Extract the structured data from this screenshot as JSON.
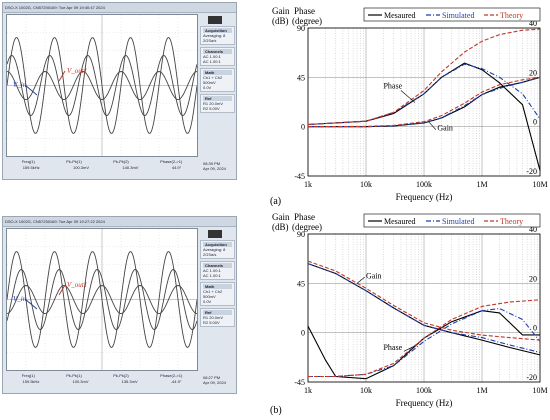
{
  "scope_a": {
    "header": "DSO-X 1002G, CN57250169: Tue Apr 09 19:40:47 2024",
    "v_in_label": "V_in",
    "v_out_label": "V_out1",
    "acquisition": [
      "Acquisition",
      "Averaging: 8",
      "2GSa/s"
    ],
    "channels": [
      "Channels",
      "AC 1.00:1",
      "AC 1.00:1"
    ],
    "math": [
      "Math",
      "Ch1 + Ch2",
      "500mV",
      "0.0V"
    ],
    "ref": [
      "Ref",
      "R1 20.0mV",
      "R2 5.00V"
    ],
    "measure_labels": [
      "Freq(1)",
      "Pk-Pk(1)",
      "Pk-Pk(2)",
      "Phase(2->1)"
    ],
    "measure_values": [
      "159.5kHz",
      "100.3mV",
      "140.3mV",
      "44.9°"
    ],
    "clock": [
      "08:39 PM",
      "Apr 09, 2024"
    ]
  },
  "scope_b": {
    "header": "DSO-X 1002G, CN57250169: Tue Apr 09 19:27:22 2024",
    "v_in_label": "V_in",
    "v_out_label": "V_out1",
    "acquisition": [
      "Acquisition",
      "Averaging: 8",
      "2GSa/s"
    ],
    "channels": [
      "Channels",
      "AC 1.00:1",
      "AC 1.00:1"
    ],
    "math": [
      "Math",
      "Ch1 + Ch2",
      "500mV",
      "0.0V"
    ],
    "ref": [
      "Ref",
      "R1 20.0mV",
      "R2 5.00V"
    ],
    "measure_labels": [
      "Freq(1)",
      "Pk-Pk(1)",
      "Pk-Pk(2)",
      "Phase(2->1)"
    ],
    "measure_values": [
      "159.5kHz",
      "100.3mV",
      "135.3mV",
      "-44.9°"
    ],
    "clock": [
      "08:27 PM",
      "Apr 09, 2024"
    ]
  },
  "captions": {
    "a": "(a)",
    "b": "(b)"
  },
  "chart_data": [
    {
      "type": "line",
      "xlabel": "Frequency (Hz)",
      "gain_axis_title": "Gain (dB)",
      "phase_axis_title": "Phase (degree)",
      "x_scale": "log",
      "x_ticks": [
        "1k",
        "10k",
        "100k",
        "1M",
        "10M"
      ],
      "gain_ticks": [
        "40",
        "20",
        "0",
        "-20"
      ],
      "phase_ticks": [
        "90",
        "45",
        "0",
        "-45"
      ],
      "gain_ylim": [
        -20,
        40
      ],
      "phase_ylim": [
        -45,
        90
      ],
      "legend_position": "top-right",
      "annotations": [
        "Phase",
        "Gain"
      ],
      "series": [
        {
          "name": "Mesaured",
          "color": "#000000",
          "dash": "solid",
          "gain": [
            [
              1000,
              0
            ],
            [
              10000,
              0
            ],
            [
              30000,
              0.3
            ],
            [
              100000,
              1.5
            ],
            [
              200000,
              3.5
            ],
            [
              500000,
              8
            ],
            [
              1000000,
              13
            ],
            [
              2000000,
              16
            ],
            [
              5000000,
              18
            ],
            [
              10000000,
              20
            ]
          ],
          "phase": [
            [
              1000,
              2
            ],
            [
              10000,
              5
            ],
            [
              30000,
              12
            ],
            [
              100000,
              30
            ],
            [
              200000,
              45
            ],
            [
              500000,
              58
            ],
            [
              1000000,
              52
            ],
            [
              2000000,
              40
            ],
            [
              5000000,
              20
            ],
            [
              10000000,
              -40
            ]
          ]
        },
        {
          "name": "Simulated",
          "color": "#1f3fb0",
          "dash": "dash-dot",
          "gain": [
            [
              1000,
              0
            ],
            [
              10000,
              0
            ],
            [
              30000,
              0.3
            ],
            [
              100000,
              1.6
            ],
            [
              200000,
              3.6
            ],
            [
              500000,
              8.5
            ],
            [
              1000000,
              13
            ],
            [
              2000000,
              15.5
            ],
            [
              5000000,
              18
            ],
            [
              10000000,
              20
            ]
          ],
          "phase": [
            [
              1000,
              2
            ],
            [
              10000,
              5
            ],
            [
              30000,
              13
            ],
            [
              100000,
              30
            ],
            [
              200000,
              45
            ],
            [
              500000,
              57
            ],
            [
              1000000,
              53
            ],
            [
              2000000,
              45
            ],
            [
              5000000,
              30
            ],
            [
              10000000,
              7
            ]
          ]
        },
        {
          "name": "Theory",
          "color": "#c0392b",
          "dash": "dash",
          "gain": [
            [
              1000,
              0
            ],
            [
              10000,
              0.1
            ],
            [
              30000,
              0.5
            ],
            [
              100000,
              2
            ],
            [
              200000,
              4.5
            ],
            [
              500000,
              9.5
            ],
            [
              1000000,
              14
            ],
            [
              2000000,
              17
            ],
            [
              5000000,
              19
            ],
            [
              10000000,
              20
            ]
          ],
          "phase": [
            [
              1000,
              2
            ],
            [
              10000,
              5
            ],
            [
              30000,
              13
            ],
            [
              100000,
              33
            ],
            [
              200000,
              50
            ],
            [
              500000,
              68
            ],
            [
              1000000,
              78
            ],
            [
              2000000,
              84
            ],
            [
              5000000,
              88
            ],
            [
              10000000,
              89
            ]
          ]
        }
      ]
    },
    {
      "type": "line",
      "xlabel": "Frequency (Hz)",
      "gain_axis_title": "Gain (dB)",
      "phase_axis_title": "Phase (degree)",
      "x_scale": "log",
      "x_ticks": [
        "1k",
        "10k",
        "100k",
        "1M",
        "10M"
      ],
      "gain_ticks": [
        "40",
        "20",
        "0",
        "-20"
      ],
      "phase_ticks": [
        "90",
        "45",
        "0",
        "-45"
      ],
      "gain_ylim": [
        -20,
        40
      ],
      "phase_ylim": [
        -45,
        90
      ],
      "legend_position": "top-right",
      "annotations": [
        "Gain",
        "Phase"
      ],
      "series": [
        {
          "name": "Mesaured",
          "color": "#000000",
          "dash": "solid",
          "gain": [
            [
              1000,
              28
            ],
            [
              3000,
              24
            ],
            [
              10000,
              17
            ],
            [
              30000,
              10
            ],
            [
              100000,
              3
            ],
            [
              300000,
              0
            ],
            [
              1000000,
              -3
            ],
            [
              3000000,
              -6
            ],
            [
              10000000,
              -9
            ]
          ],
          "phase": [
            [
              1000,
              6
            ],
            [
              2000,
              -25
            ],
            [
              3000,
              -40
            ],
            [
              10000,
              -42
            ],
            [
              30000,
              -30
            ],
            [
              100000,
              -5
            ],
            [
              300000,
              10
            ],
            [
              1000000,
              20
            ],
            [
              2000000,
              18
            ],
            [
              5000000,
              -2
            ],
            [
              10000000,
              -2
            ]
          ]
        },
        {
          "name": "Simulated",
          "color": "#1f3fb0",
          "dash": "dash-dot",
          "gain": [
            [
              1000,
              28
            ],
            [
              3000,
              24
            ],
            [
              10000,
              17
            ],
            [
              30000,
              10
            ],
            [
              100000,
              3
            ],
            [
              300000,
              0
            ],
            [
              1000000,
              -2
            ],
            [
              3000000,
              -5
            ],
            [
              10000000,
              -8
            ]
          ],
          "phase": [
            [
              1000,
              -40
            ],
            [
              3000,
              -40
            ],
            [
              10000,
              -38
            ],
            [
              30000,
              -30
            ],
            [
              100000,
              -8
            ],
            [
              300000,
              8
            ],
            [
              1000000,
              20
            ],
            [
              2000000,
              22
            ],
            [
              5000000,
              12
            ],
            [
              10000000,
              -8
            ]
          ]
        },
        {
          "name": "Theory",
          "color": "#c0392b",
          "dash": "dash",
          "gain": [
            [
              1000,
              29
            ],
            [
              3000,
              25
            ],
            [
              10000,
              18
            ],
            [
              30000,
              11
            ],
            [
              100000,
              4
            ],
            [
              300000,
              1
            ],
            [
              1000000,
              -1
            ],
            [
              3000000,
              -2
            ],
            [
              10000000,
              -3
            ]
          ],
          "phase": [
            [
              1000,
              -40
            ],
            [
              3000,
              -40
            ],
            [
              10000,
              -38
            ],
            [
              30000,
              -28
            ],
            [
              100000,
              -5
            ],
            [
              300000,
              12
            ],
            [
              1000000,
              24
            ],
            [
              3000000,
              28
            ],
            [
              10000000,
              30
            ]
          ]
        }
      ]
    }
  ]
}
